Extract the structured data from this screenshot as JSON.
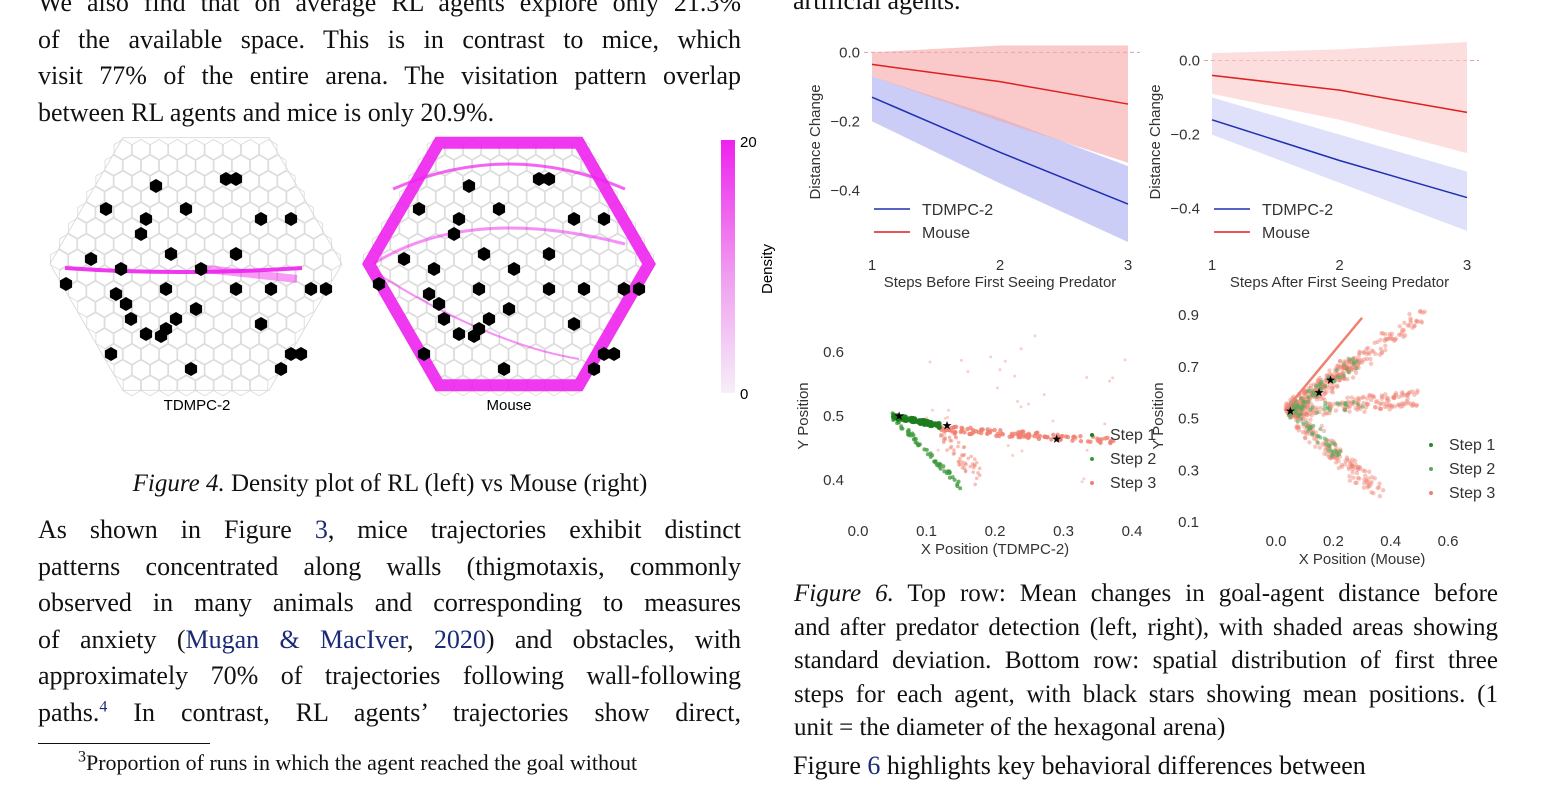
{
  "left": {
    "para1": [
      "We also find that on average RL agents explore only 21.3%",
      "of the available space.  This is in contrast to mice, which",
      "visit 77% of the entire arena. The visitation pattern overlap",
      "between RL agents and mice is only 20.9%."
    ],
    "fig4": {
      "label_left": "TDMPC-2",
      "label_right": "Mouse",
      "colorbar_title": "Density",
      "colorbar_max": "20",
      "colorbar_min": "0",
      "density_color": "#ee22ee",
      "caption_label": "Figure 4.",
      "caption_text": " Density plot of RL (left) vs Mouse (right)"
    },
    "para2": {
      "l1a": "As shown in Figure ",
      "l1ref": "3",
      "l1b": ", mice trajectories exhibit distinct",
      "l2": "patterns concentrated along walls (thigmotaxis, commonly",
      "l3": "observed in many animals and corresponding to measures",
      "l4a": "of anxiety (",
      "l4cite": "Mugan & MacIver",
      "l4c": ", ",
      "l4year": "2020",
      "l4b": ") and obstacles, with",
      "l5": "approximately 70% of trajectories following wall-following",
      "l6a": "paths.",
      "l6sup": "4",
      "l6b": "  In contrast, RL agents’ trajectories show direct,"
    },
    "footnote": {
      "sup": "3",
      "text": "Proportion of runs in which the agent reached the goal without"
    }
  },
  "right": {
    "top_text": "artificial agents.",
    "fig6": {
      "caption_label": "Figure 6.",
      "caption_lines": [
        " Top row: Mean changes in goal-agent distance before",
        "and after predator detection (left, right), with shaded areas showing",
        "standard deviation. Bottom row: spatial distribution of first three",
        "steps for each agent, with black stars showing mean positions. (1",
        "unit = the diameter of the hexagonal arena)"
      ]
    },
    "bottom_text_a": "Figure ",
    "bottom_text_ref": "6",
    "bottom_text_b": " highlights key behavioral differences between"
  },
  "chart_data": [
    {
      "type": "line",
      "xlabel": "Steps Before First Seeing Predator",
      "ylabel": "Distance Change",
      "x": [
        1,
        2,
        3
      ],
      "xticks": [
        "1",
        "2",
        "3"
      ],
      "yticks": [
        "0.0",
        "−0.2",
        "−0.4"
      ],
      "ylim": [
        -0.55,
        0.03
      ],
      "series": [
        {
          "name": "TDMPC-2",
          "color": "#1f2fb0",
          "fill": "#a8acf0",
          "values": [
            -0.13,
            -0.29,
            -0.44
          ],
          "lower": [
            -0.2,
            -0.38,
            -0.55
          ],
          "upper": [
            -0.07,
            -0.19,
            -0.33
          ]
        },
        {
          "name": "Mouse",
          "color": "#dd1f1f",
          "fill": "#f7a6a6",
          "values": [
            -0.035,
            -0.085,
            -0.15
          ],
          "lower": [
            -0.07,
            -0.2,
            -0.32
          ],
          "upper": [
            0.0,
            0.02,
            0.02
          ]
        }
      ],
      "legend": "lower-left",
      "reference_line": 0.0
    },
    {
      "type": "line",
      "xlabel": "Steps After First Seeing Predator",
      "ylabel": "Distance Change",
      "x": [
        1,
        2,
        3
      ],
      "xticks": [
        "1",
        "2",
        "3"
      ],
      "yticks": [
        "0.0",
        "−0.2",
        "−0.4"
      ],
      "ylim": [
        -0.49,
        0.05
      ],
      "series": [
        {
          "name": "TDMPC-2",
          "color": "#1f2fb0",
          "fill": "#c9cbf5",
          "values": [
            -0.16,
            -0.27,
            -0.37
          ],
          "lower": [
            -0.2,
            -0.33,
            -0.46
          ],
          "upper": [
            -0.1,
            -0.2,
            -0.3
          ]
        },
        {
          "name": "Mouse",
          "color": "#dd1f1f",
          "fill": "#fbc8c8",
          "values": [
            -0.04,
            -0.08,
            -0.14
          ],
          "lower": [
            -0.09,
            -0.16,
            -0.25
          ],
          "upper": [
            0.02,
            0.03,
            0.05
          ]
        }
      ],
      "legend": "lower-left",
      "reference_line": 0.0
    },
    {
      "type": "scatter",
      "xlabel": "X Position (TDMPC-2)",
      "ylabel": "Y Position",
      "xticks": [
        "0.0",
        "0.1",
        "0.2",
        "0.3",
        "0.4"
      ],
      "yticks": [
        "0.4",
        "0.5",
        "0.6"
      ],
      "xlim": [
        0.0,
        0.4
      ],
      "ylim": [
        0.35,
        0.65
      ],
      "series": [
        {
          "name": "Step 1",
          "color": "#1e7d1e",
          "trend": [
            [
              0.05,
              0.5
            ],
            [
              0.12,
              0.485
            ]
          ]
        },
        {
          "name": "Step 2",
          "color": "#3a9a3a",
          "trend": [
            [
              0.05,
              0.5
            ],
            [
              0.11,
              0.44
            ],
            [
              0.15,
              0.39
            ]
          ]
        },
        {
          "name": "Step 3",
          "color": "#f08070",
          "trend": [
            [
              0.13,
              0.48
            ],
            [
              0.29,
              0.465
            ],
            [
              0.37,
              0.463
            ]
          ]
        }
      ],
      "mean_positions": [
        [
          0.06,
          0.5
        ],
        [
          0.13,
          0.485
        ],
        [
          0.29,
          0.464
        ]
      ],
      "legend": "lower-right"
    },
    {
      "type": "scatter",
      "xlabel": "X Position (Mouse)",
      "ylabel": "Y Position",
      "xticks": [
        "0.0",
        "0.2",
        "0.4",
        "0.6"
      ],
      "yticks": [
        "0.1",
        "0.3",
        "0.5",
        "0.7",
        "0.9"
      ],
      "xlim": [
        -0.22,
        0.68
      ],
      "ylim": [
        0.1,
        0.92
      ],
      "series": [
        {
          "name": "Step 1",
          "color": "#2a8a2a"
        },
        {
          "name": "Step 2",
          "color": "#5aaa5a"
        },
        {
          "name": "Step 3",
          "color": "#f08070"
        }
      ],
      "mean_positions": [
        [
          0.05,
          0.53
        ],
        [
          0.15,
          0.6
        ],
        [
          0.19,
          0.65
        ]
      ],
      "legend": "lower-right"
    }
  ]
}
